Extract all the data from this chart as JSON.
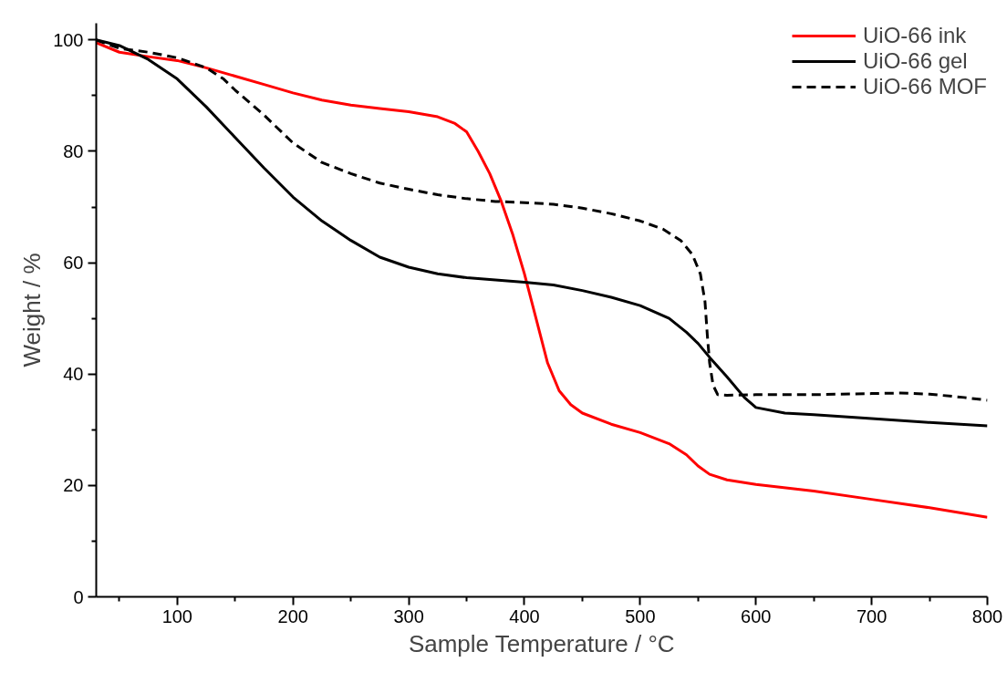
{
  "chart_data": {
    "type": "line",
    "xlabel": "Sample Temperature / °C",
    "ylabel": "Weight / %",
    "xlim": [
      30,
      800
    ],
    "ylim": [
      0,
      103
    ],
    "xticks": [
      {
        "value": 50,
        "label": null
      },
      100,
      {
        "value": 150,
        "label": null
      },
      200,
      {
        "value": 250,
        "label": null
      },
      300,
      {
        "value": 350,
        "label": null
      },
      400,
      {
        "value": 450,
        "label": null
      },
      500,
      {
        "value": 550,
        "label": null
      },
      600,
      {
        "value": 650,
        "label": null
      },
      700,
      {
        "value": 750,
        "label": null
      },
      800
    ],
    "yticks": [
      0,
      {
        "value": 10,
        "label": null
      },
      20,
      {
        "value": 30,
        "label": null
      },
      40,
      {
        "value": 50,
        "label": null
      },
      60,
      {
        "value": 70,
        "label": null
      },
      80,
      {
        "value": 90,
        "label": null
      },
      100
    ],
    "grid": false,
    "legend": "top right",
    "marker": "none",
    "series": [
      {
        "name": "UiO-66 ink",
        "color": "#ff0000",
        "line_style": "solid",
        "x": [
          30,
          50,
          75,
          100,
          125,
          150,
          175,
          200,
          225,
          250,
          275,
          300,
          325,
          340,
          350,
          360,
          370,
          380,
          390,
          400,
          410,
          420,
          430,
          440,
          450,
          475,
          500,
          525,
          540,
          550,
          560,
          575,
          600,
          650,
          700,
          750,
          800
        ],
        "values": [
          99.5,
          97.8,
          97,
          96.3,
          95,
          93.5,
          92,
          90.5,
          89.2,
          88.3,
          87.7,
          87.1,
          86.2,
          85,
          83.5,
          80,
          76,
          71,
          65,
          58,
          50,
          42,
          37,
          34.5,
          33,
          31,
          29.5,
          27.5,
          25.5,
          23.5,
          22,
          21,
          20.2,
          19,
          17.5,
          16,
          14.3
        ]
      },
      {
        "name": "UiO-66 gel",
        "color": "#000000",
        "line_style": "solid",
        "x": [
          30,
          50,
          75,
          100,
          125,
          150,
          175,
          200,
          225,
          250,
          275,
          300,
          325,
          350,
          375,
          400,
          425,
          450,
          475,
          500,
          525,
          540,
          550,
          560,
          575,
          590,
          600,
          625,
          650,
          700,
          750,
          800
        ],
        "values": [
          100,
          99,
          96.5,
          93,
          88,
          82.5,
          77,
          71.8,
          67.5,
          64,
          61,
          59.2,
          58,
          57.3,
          56.9,
          56.5,
          56,
          55,
          53.8,
          52.3,
          50,
          47.5,
          45.5,
          43,
          39.5,
          35.8,
          34,
          33,
          32.7,
          32,
          31.3,
          30.7
        ]
      },
      {
        "name": "UiO-66 MOF",
        "color": "#000000",
        "line_style": "dashed",
        "x": [
          30,
          50,
          75,
          100,
          125,
          140,
          150,
          175,
          200,
          225,
          250,
          275,
          300,
          325,
          350,
          375,
          400,
          425,
          450,
          475,
          500,
          520,
          535,
          545,
          552,
          556,
          558,
          560,
          563,
          567,
          575,
          600,
          650,
          700,
          725,
          750,
          780,
          800
        ],
        "values": [
          100,
          98.5,
          97.8,
          96.8,
          95,
          93,
          91,
          86.5,
          81.5,
          78,
          76,
          74.3,
          73.2,
          72.2,
          71.5,
          71,
          70.8,
          70.5,
          69.8,
          68.8,
          67.5,
          66,
          64,
          61.5,
          58,
          53,
          47,
          42,
          38,
          36.3,
          36.2,
          36.3,
          36.3,
          36.5,
          36.6,
          36.4,
          35.8,
          35.3
        ]
      }
    ]
  }
}
